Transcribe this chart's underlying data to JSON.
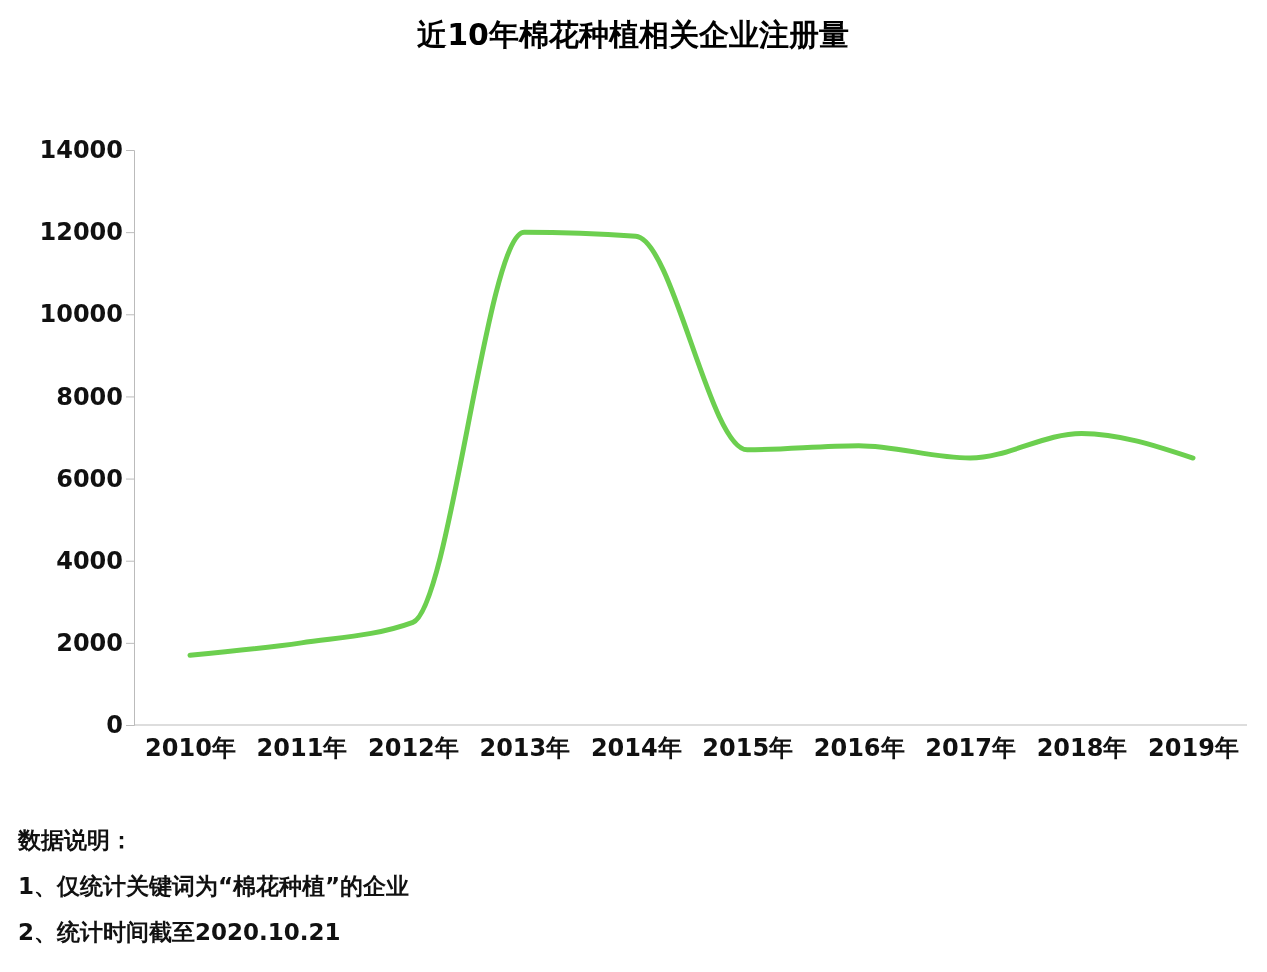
{
  "chart_data": {
    "type": "line",
    "title": "近10年棉花种植相关企业注册量",
    "categories": [
      "2010年",
      "2011年",
      "2012年",
      "2013年",
      "2014年",
      "2015年",
      "2016年",
      "2017年",
      "2018年",
      "2019年"
    ],
    "series": [
      {
        "color": "#6ccf4f",
        "values": [
          1700,
          2000,
          2500,
          12000,
          11900,
          6700,
          6800,
          6500,
          7100,
          6500
        ]
      }
    ],
    "ylim": [
      0,
      14000
    ],
    "yticks": [
      0,
      2000,
      4000,
      6000,
      8000,
      10000,
      12000,
      14000
    ],
    "grid": false,
    "marker": "none",
    "line_style": "solid",
    "annotations": [
      "数据说明：",
      "1、仅统计关键词为“棉花种植”的企业",
      "2、统计时间截至2020.10.21"
    ]
  }
}
